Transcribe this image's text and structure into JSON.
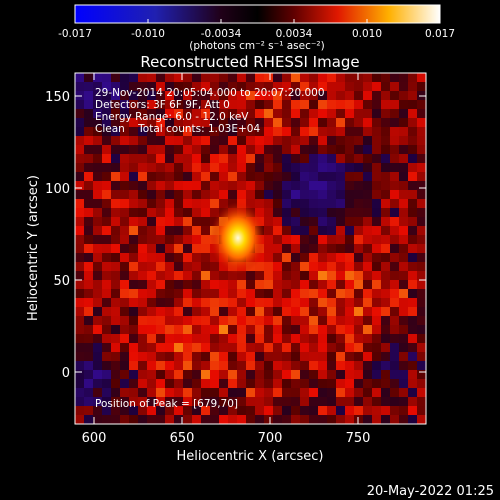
{
  "colorbar": {
    "ticks": [
      "-0.017",
      "-0.010",
      "-0.0034",
      "0.0034",
      "0.010",
      "0.017"
    ],
    "units": "(photons cm⁻² s⁻¹ asec⁻²)"
  },
  "title": "Reconstructed RHESSI Image",
  "info": {
    "time_range": "29-Nov-2014 20:05:04.000 to 20:07:20.000",
    "detectors": "Detectors: 3F 6F 9F, Att 0",
    "energy": "Energy Range: 6.0 - 12.0 keV",
    "clean": "Clean    Total counts: 1.03E+04",
    "peak": "Position of Peak = [679,70]"
  },
  "axes": {
    "xlabel": "Heliocentric X (arcsec)",
    "ylabel": "Heliocentric Y (arcsec)",
    "xticks": [
      "600",
      "650",
      "700",
      "750"
    ],
    "yticks": [
      "150",
      "100",
      "50",
      "0"
    ]
  },
  "image": {
    "peak_x": 679,
    "peak_y": 70,
    "colormap_colors": [
      "#0000ff",
      "#000000",
      "#ff0000",
      "#ffff00",
      "#ffffff"
    ]
  },
  "footer": "20-May-2022 01:25"
}
